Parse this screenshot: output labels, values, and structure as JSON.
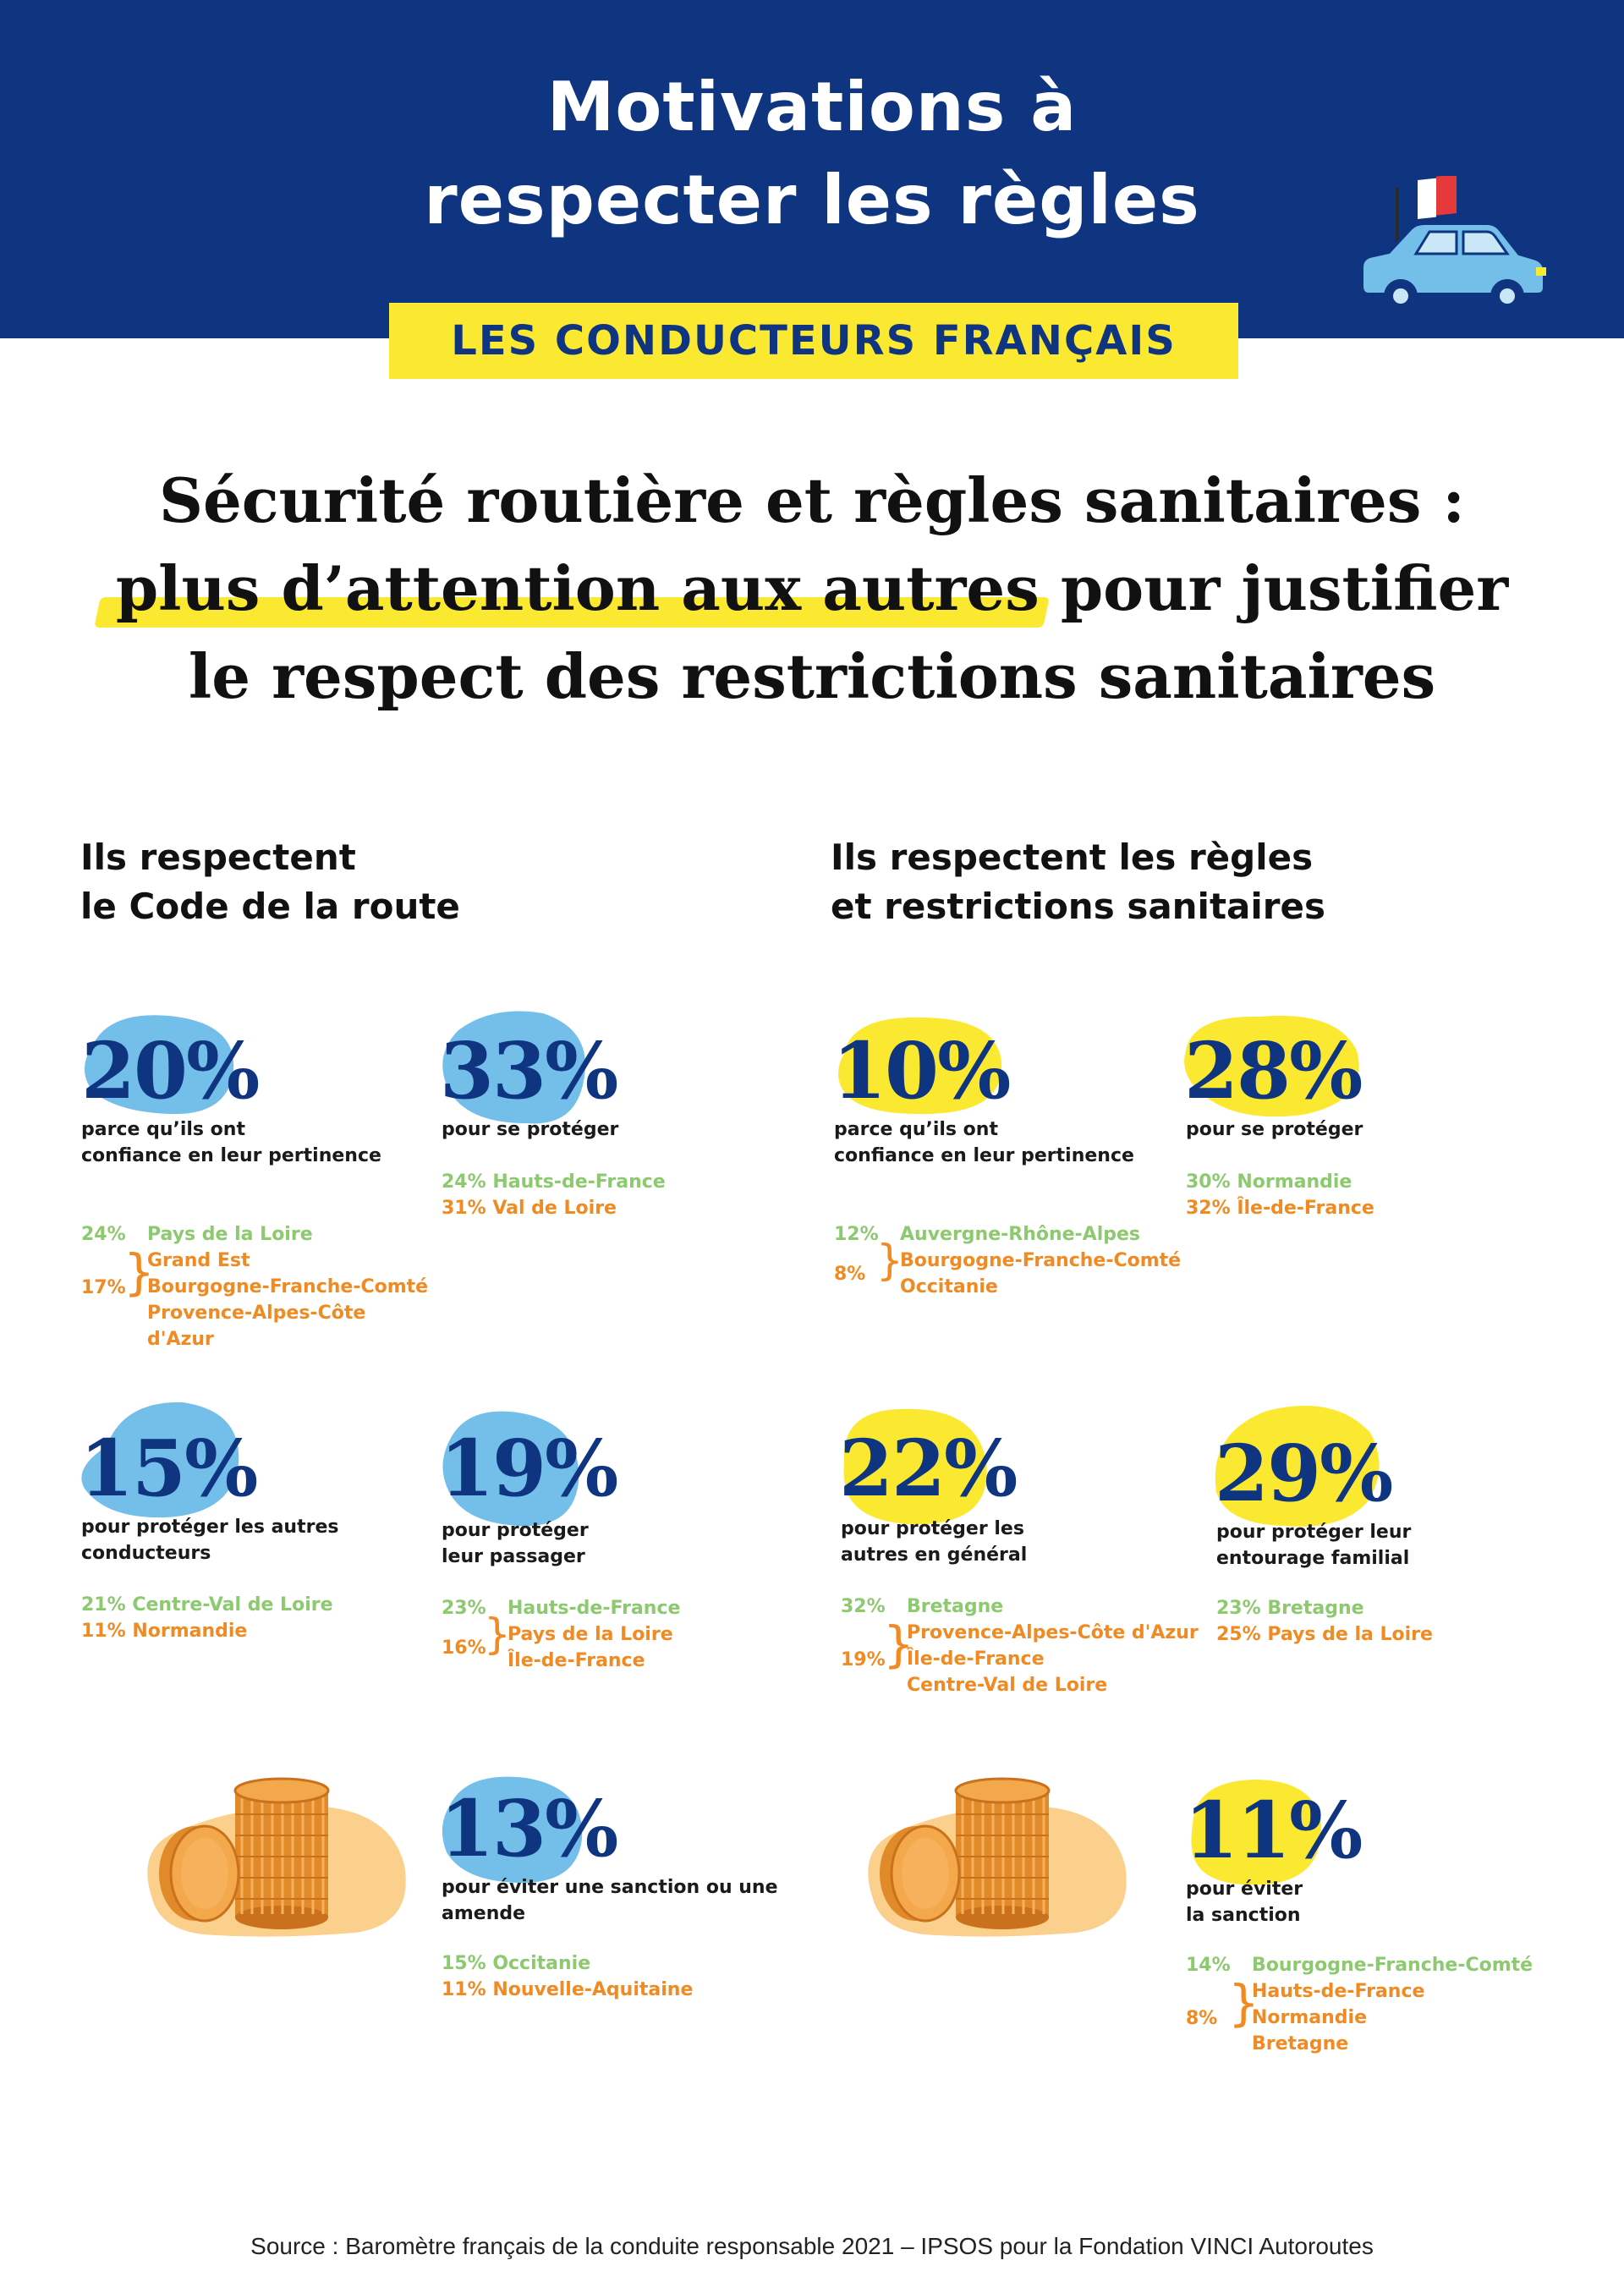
{
  "header": {
    "title_line1": "Motivations à",
    "title_line2": "respecter les règles",
    "subtitle": "LES CONDUCTEURS FRANÇAIS"
  },
  "headline": {
    "line1": "Sécurité routière et règles sanitaires :",
    "line2_highlight": "plus d’attention aux autres",
    "line2_rest": " pour justifier",
    "line3": "le respect des restrictions sanitaires"
  },
  "sections": {
    "left": {
      "line1": "Ils respectent",
      "line2": "le Code de la route"
    },
    "right": {
      "line1": "Ils respectent les règles",
      "line2": "et restrictions sanitaires"
    }
  },
  "colors": {
    "navy": "#0f3580",
    "yellow": "#fbe931",
    "blue_blob": "#74bfe9",
    "green": "#8cc96f",
    "orange": "#f08b23",
    "coin": "#fbd08c"
  },
  "stats": {
    "s1": {
      "pct": "20%",
      "desc_l1": "parce qu’ils ont",
      "desc_l2": "confiance en leur pertinence",
      "g1_v": "24%",
      "g1_n": "Pays de la Loire",
      "o_v": "17%",
      "o_n1": "Grand Est",
      "o_n2": "Bourgogne-Franche-Comté",
      "o_n3": "Provence-Alpes-Côte d'Azur"
    },
    "s2": {
      "pct": "33%",
      "desc_l1": "pour se protéger",
      "g1": "24% Hauts-de-France",
      "o1": "31% Val de Loire"
    },
    "s3": {
      "pct": "10%",
      "desc_l1": "parce qu’ils ont",
      "desc_l2": "confiance en leur pertinence",
      "g1_v": "12%",
      "g1_n": "Auvergne-Rhône-Alpes",
      "o_v": "8%",
      "o_n1": "Bourgogne-Franche-Comté",
      "o_n2": "Occitanie"
    },
    "s4": {
      "pct": "28%",
      "desc_l1": "pour se protéger",
      "g1": "30% Normandie",
      "o1": "32% Île-de-France"
    },
    "s5": {
      "pct": "15%",
      "desc_l1": "pour protéger les autres",
      "desc_l2": "conducteurs",
      "g1": "21% Centre-Val de Loire",
      "o1": "11% Normandie"
    },
    "s6": {
      "pct": "19%",
      "desc_l1": "pour protéger",
      "desc_l2": "leur passager",
      "g1_v": "23%",
      "g1_n": "Hauts-de-France",
      "o_v": "16%",
      "o_n1": "Pays de la Loire",
      "o_n2": "Île-de-France"
    },
    "s7": {
      "pct": "22%",
      "desc_l1": "pour protéger les",
      "desc_l2": "autres en général",
      "g1_v": "32%",
      "g1_n": "Bretagne",
      "o_v": "19%",
      "o_n1": "Provence-Alpes-Côte d'Azur",
      "o_n2": "Île-de-France",
      "o_n3": "Centre-Val de Loire"
    },
    "s8": {
      "pct": "29%",
      "desc_l1": "pour protéger leur",
      "desc_l2": "entourage familial",
      "g1": "23% Bretagne",
      "o1": "25% Pays de la Loire"
    },
    "s9": {
      "pct": "13%",
      "desc_l1": "pour éviter une sanction ou une",
      "desc_l2": "amende",
      "g1": "15% Occitanie",
      "o1": "11% Nouvelle-Aquitaine"
    },
    "s10": {
      "pct": "11%",
      "desc_l1": "pour éviter",
      "desc_l2": "la sanction",
      "g1_v": "14%",
      "g1_n": "Bourgogne-Franche-Comté",
      "o_v": "8%",
      "o_n1": "Hauts-de-France",
      "o_n2": "Normandie",
      "o_n3": "Bretagne"
    }
  },
  "source": "Source : Baromètre français de la conduite responsable 2021 – IPSOS pour la Fondation VINCI Autoroutes"
}
